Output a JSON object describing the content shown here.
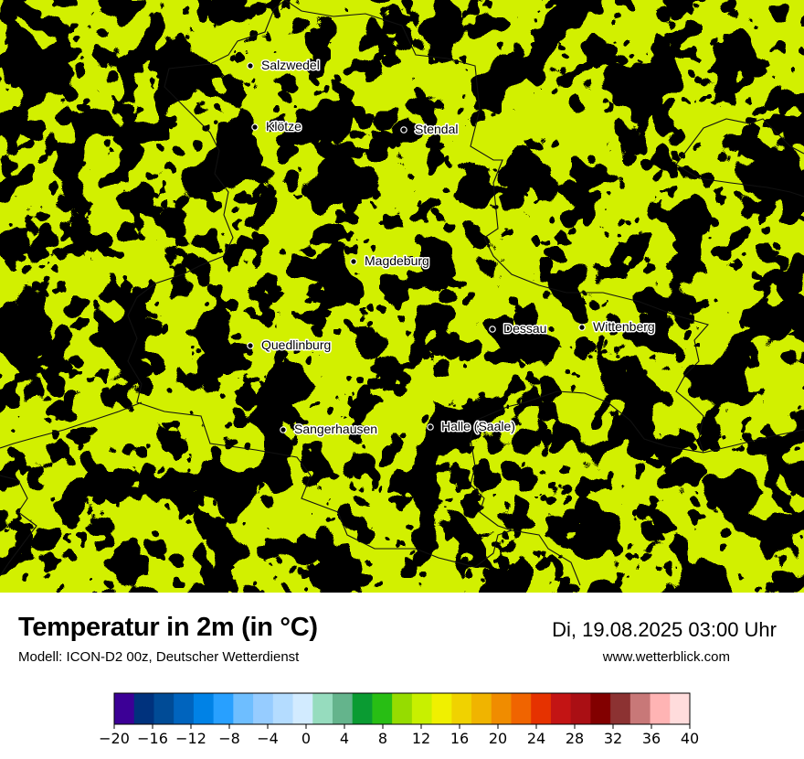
{
  "header": {
    "title": "Temperatur in 2m (in °C)",
    "model": "Modell: ICON-D2 00z, Deutscher Wetterdienst",
    "datetime": "Di, 19.08.2025 03:00 Uhr",
    "website": "www.wetterblick.com"
  },
  "map": {
    "cities": [
      "Salzwedel",
      "Klötze",
      "Stendal",
      "Magdeburg",
      "Dessau",
      "Wittenberg",
      "Quedlinburg",
      "Sangerhausen",
      "Halle (Saale)"
    ],
    "base_color": "#d2f000",
    "field_colors": [
      "#b4e30a",
      "#96d21e",
      "#64c328",
      "#f0f000",
      "#e6e600",
      "#28b428"
    ]
  },
  "colorbar": {
    "colors": [
      "#3c0096",
      "#00327d",
      "#004b96",
      "#0064be",
      "#0082e6",
      "#28a0ff",
      "#6ebeff",
      "#96ccff",
      "#b4dcff",
      "#d2ebff",
      "#96dcbe",
      "#64b48c",
      "#0a9b32",
      "#28be14",
      "#96dc00",
      "#c8f000",
      "#f0f000",
      "#f0d200",
      "#f0b400",
      "#f08c00",
      "#f06400",
      "#e63200",
      "#c31414",
      "#aa0f14",
      "#820000",
      "#8c3232",
      "#c87878",
      "#ffb4b4",
      "#ffdcdc"
    ],
    "ticks": [
      "−20",
      "−16",
      "−12",
      "−8",
      "−4",
      "0",
      "4",
      "8",
      "12",
      "16",
      "20",
      "24",
      "28",
      "32",
      "36",
      "40"
    ]
  }
}
